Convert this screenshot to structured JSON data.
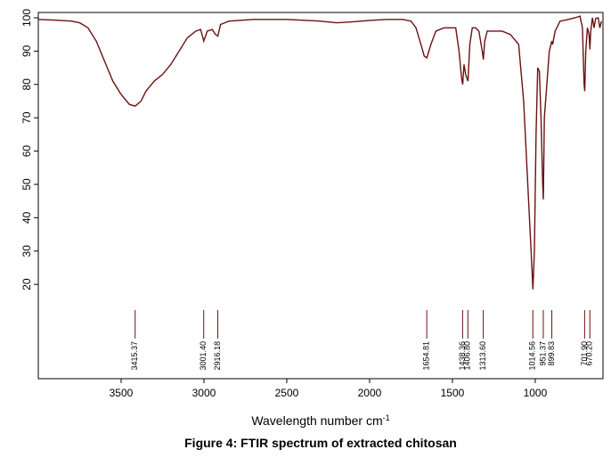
{
  "chart_data": {
    "type": "line",
    "title": "Figure 4: FTIR spectrum of extracted chitosan",
    "xlabel": "Wavelength number cm",
    "xlabel_superscript": "-1",
    "x": [
      4000,
      3900,
      3800,
      3750,
      3700,
      3650,
      3600,
      3550,
      3500,
      3450,
      3415,
      3380,
      3350,
      3300,
      3250,
      3200,
      3150,
      3100,
      3050,
      3020,
      3001,
      2980,
      2950,
      2930,
      2916,
      2900,
      2850,
      2700,
      2500,
      2300,
      2200,
      2100,
      2000,
      1900,
      1800,
      1750,
      1720,
      1690,
      1670,
      1654,
      1630,
      1600,
      1550,
      1480,
      1460,
      1445,
      1438,
      1430,
      1420,
      1406,
      1395,
      1380,
      1360,
      1340,
      1320,
      1313,
      1305,
      1290,
      1260,
      1200,
      1150,
      1100,
      1070,
      1040,
      1025,
      1014,
      1005,
      995,
      985,
      975,
      965,
      955,
      951,
      945,
      930,
      915,
      900,
      895,
      880,
      850,
      800,
      760,
      730,
      715,
      705,
      701,
      695,
      685,
      675,
      670,
      665,
      655,
      645,
      635,
      620,
      610,
      600
    ],
    "series": [
      {
        "name": "spectrum",
        "color": "#6b1111",
        "values": [
          99.5,
          99.3,
          99,
          98.5,
          97,
          93,
          87,
          81,
          77,
          74,
          73.5,
          75,
          78,
          81,
          83,
          86,
          90,
          94,
          96,
          96.5,
          93,
          96,
          96.5,
          95,
          94.5,
          98,
          99,
          99.5,
          99.5,
          99,
          98.5,
          98.8,
          99.2,
          99.5,
          99.5,
          99,
          97,
          92,
          88.5,
          88,
          92,
          96,
          97,
          97,
          90,
          82,
          80,
          86,
          83,
          81,
          92,
          97,
          97,
          96,
          90,
          87.5,
          93,
          96,
          96,
          96,
          95,
          92,
          75,
          45,
          30,
          18.5,
          30,
          65,
          85,
          84,
          70,
          50,
          45.5,
          70,
          80,
          90,
          93,
          92,
          96,
          99,
          99.5,
          100,
          100.5,
          97,
          80,
          78,
          90,
          97,
          95,
          90.5,
          96,
          100,
          97,
          99.8,
          100,
          97,
          99
        ]
      }
    ],
    "xlim": [
      4000,
      591
    ],
    "ylim": [
      -8.3,
      101.6
    ],
    "xticks": [
      3500,
      3000,
      2500,
      2000,
      1500,
      1000
    ],
    "yticks": [
      20,
      30,
      40,
      50,
      60,
      70,
      80,
      90,
      100
    ],
    "peaks": [
      {
        "value": 3415.37,
        "label": "3415.37"
      },
      {
        "value": 3001.4,
        "label": "3001.40"
      },
      {
        "value": 2916.18,
        "label": "2916.18"
      },
      {
        "value": 1654.81,
        "label": "1654.81"
      },
      {
        "value": 1438.36,
        "label": "1438.36"
      },
      {
        "value": 1406.8,
        "label": "1406.80"
      },
      {
        "value": 1313.6,
        "label": "1313.60"
      },
      {
        "value": 1014.56,
        "label": "1014.56"
      },
      {
        "value": 951.37,
        "label": "951.37"
      },
      {
        "value": 899.83,
        "label": "899.83"
      },
      {
        "value": 701.9,
        "label": "701.90"
      },
      {
        "value": 670.2,
        "label": "670.20"
      }
    ]
  }
}
